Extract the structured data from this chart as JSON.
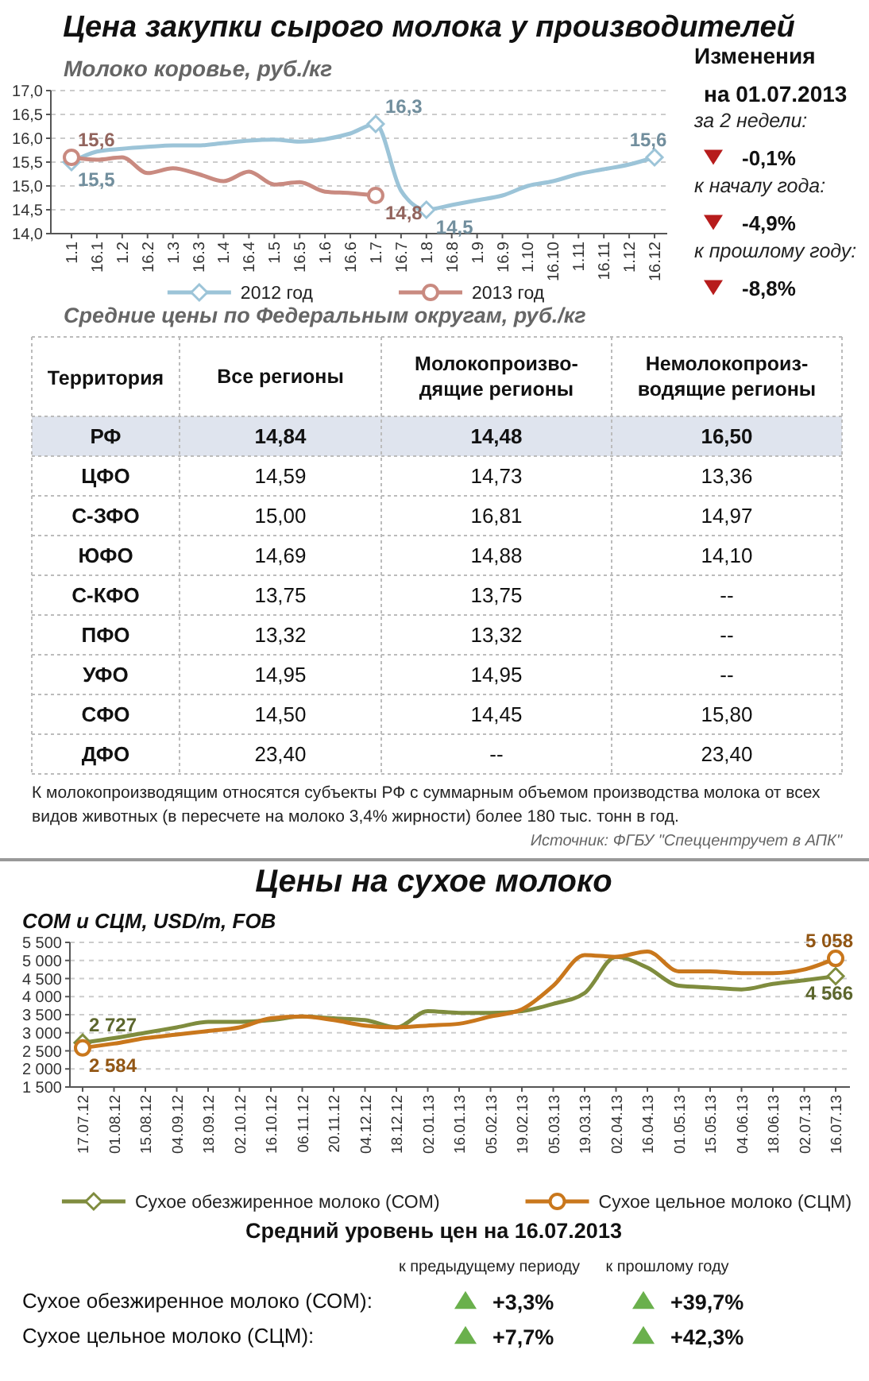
{
  "chart_data": [
    {
      "type": "line",
      "title": "Цена закупки сырого молока у производителей",
      "subtitle": "Молоко коровье, руб./кг",
      "categories": [
        "1.1",
        "16.1",
        "1.2",
        "16.2",
        "1.3",
        "16.3",
        "1.4",
        "16.4",
        "1.5",
        "16.5",
        "1.6",
        "16.6",
        "1.7",
        "16.7",
        "1.8",
        "16.8",
        "1.9",
        "16.9",
        "1.10",
        "16.10",
        "1.11",
        "16.11",
        "1.12",
        "16.12"
      ],
      "series": [
        {
          "name": "2012 год",
          "color": "#9cc4d8",
          "values": [
            15.5,
            15.72,
            15.78,
            15.82,
            15.85,
            15.85,
            15.9,
            15.95,
            15.97,
            15.93,
            15.98,
            16.1,
            16.3,
            14.9,
            14.5,
            14.6,
            14.7,
            14.8,
            15.0,
            15.1,
            15.25,
            15.35,
            15.45,
            15.6
          ],
          "value_labels": [
            "15,5",
            null,
            null,
            null,
            null,
            null,
            null,
            null,
            null,
            null,
            null,
            null,
            "16,3",
            null,
            "14,5",
            null,
            null,
            null,
            null,
            null,
            null,
            null,
            null,
            "15,6"
          ]
        },
        {
          "name": "2013 год",
          "color": "#c98a80",
          "values": [
            15.6,
            15.55,
            15.6,
            15.27,
            15.37,
            15.25,
            15.1,
            15.3,
            15.03,
            15.08,
            14.88,
            14.85,
            14.8,
            null,
            null,
            null,
            null,
            null,
            null,
            null,
            null,
            null,
            null,
            null
          ],
          "value_labels": [
            "15,6",
            null,
            null,
            null,
            null,
            null,
            null,
            null,
            null,
            null,
            null,
            null,
            "14,8",
            null,
            null,
            null,
            null,
            null,
            null,
            null,
            null,
            null,
            null,
            null
          ]
        }
      ],
      "ylim": [
        14,
        17
      ],
      "yticks": [
        {
          "value": 14,
          "label": "14,0"
        },
        {
          "value": 14.5,
          "label": "14,5"
        },
        {
          "value": 15,
          "label": "15,0"
        },
        {
          "value": 15.5,
          "label": "15,5"
        },
        {
          "value": 16,
          "label": "16,0"
        },
        {
          "value": 16.5,
          "label": "16,5"
        },
        {
          "value": 17,
          "label": "17,0"
        }
      ],
      "grid": "y",
      "legend": "bottom",
      "line_style": "solid"
    },
    {
      "type": "other",
      "title": "Изменения",
      "subtitle": "на 01.07.2013",
      "y_categories": [
        "за 2 недели:",
        "к началу года:",
        "к прошлому году:"
      ],
      "cell_labels": [
        [
          "-0,1%"
        ],
        [
          "-4,9%"
        ],
        [
          "-8,8%"
        ]
      ]
    },
    {
      "type": "other",
      "title": "Средние цены по Федеральным округам, руб./кг",
      "categories": [
        "Все регионы",
        "Молокопроизво-дящие регионы",
        "Немолокопроиз-водящие регионы"
      ],
      "y_categories": [
        "РФ",
        "ЦФО",
        "С-ЗФО",
        "ЮФО",
        "С-КФО",
        "ПФО",
        "УФО",
        "СФО",
        "ДФО"
      ],
      "cell_labels": [
        [
          "14,84",
          "14,48",
          "16,50"
        ],
        [
          "14,59",
          "14,73",
          "13,36"
        ],
        [
          "15,00",
          "16,81",
          "14,97"
        ],
        [
          "14,69",
          "14,88",
          "14,10"
        ],
        [
          "13,75",
          "13,75",
          "--"
        ],
        [
          "13,32",
          "13,32",
          "--"
        ],
        [
          "14,95",
          "14,95",
          "--"
        ],
        [
          "14,50",
          "14,45",
          "15,80"
        ],
        [
          "23,40",
          "--",
          "23,40"
        ]
      ],
      "annotations": [
        "Территория",
        "К молокопроизводящим относятся субъекты РФ с суммарным объемом производства молока от всех видов животных (в пересчете на молоко 3,4% жирности) более 180 тыс. тонн в год.",
        "Источник: ФГБУ \"Спеццентручет в АПК\""
      ]
    },
    {
      "type": "line",
      "title": "Цены на сухое молоко",
      "subtitle": "СОМ и СЦМ, USD/m, FOB",
      "categories": [
        "17.07.12",
        "01.08.12",
        "15.08.12",
        "04.09.12",
        "18.09.12",
        "02.10.12",
        "16.10.12",
        "06.11.12",
        "20.11.12",
        "04.12.12",
        "18.12.12",
        "02.01.13",
        "16.01.13",
        "05.02.13",
        "19.02.13",
        "05.03.13",
        "19.03.13",
        "02.04.13",
        "16.04.13",
        "01.05.13",
        "15.05.13",
        "04.06.13",
        "18.06.13",
        "02.07.13",
        "16.07.13"
      ],
      "series": [
        {
          "name": "Сухое обезжиренное молоко (СОМ)",
          "color": "#7f8c3e",
          "values": [
            2727,
            2850,
            3000,
            3150,
            3300,
            3300,
            3350,
            3450,
            3400,
            3350,
            3150,
            3600,
            3550,
            3550,
            3600,
            3800,
            4100,
            5100,
            4800,
            4300,
            4250,
            4200,
            4350,
            4450,
            4566
          ],
          "value_labels": [
            "2 727",
            null,
            null,
            null,
            null,
            null,
            null,
            null,
            null,
            null,
            null,
            null,
            null,
            null,
            null,
            null,
            null,
            null,
            null,
            null,
            null,
            null,
            null,
            null,
            "4 566"
          ]
        },
        {
          "name": "Сухое цельное молоко (СЦМ)",
          "color": "#c9771c",
          "values": [
            2584,
            2700,
            2850,
            2950,
            3050,
            3150,
            3400,
            3450,
            3350,
            3200,
            3150,
            3200,
            3250,
            3450,
            3650,
            4300,
            5150,
            5100,
            5250,
            4700,
            4700,
            4650,
            4650,
            4750,
            5058
          ],
          "value_labels": [
            "2 584",
            null,
            null,
            null,
            null,
            null,
            null,
            null,
            null,
            null,
            null,
            null,
            null,
            null,
            null,
            null,
            null,
            null,
            null,
            null,
            null,
            null,
            null,
            null,
            "5 058"
          ]
        }
      ],
      "ylim": [
        1500,
        5500
      ],
      "yticks": [
        {
          "value": 1500,
          "label": "1 500"
        },
        {
          "value": 2000,
          "label": "2 000"
        },
        {
          "value": 2500,
          "label": "2 500"
        },
        {
          "value": 3000,
          "label": "3 000"
        },
        {
          "value": 3500,
          "label": "3 500"
        },
        {
          "value": 4000,
          "label": "4 000"
        },
        {
          "value": 4500,
          "label": "4 500"
        },
        {
          "value": 5000,
          "label": "5 000"
        },
        {
          "value": 5500,
          "label": "5 500"
        }
      ],
      "grid": "y",
      "legend": "bottom",
      "line_style": "solid"
    },
    {
      "type": "other",
      "title": "Средний уровень цен на 16.07.2013",
      "categories": [
        "к предыдущему периоду",
        "к прошлому году"
      ],
      "y_categories": [
        "Сухое обезжиренное молоко (СОМ):",
        "Сухое цельное молоко (СЦМ):"
      ],
      "cell_labels": [
        [
          "+3,3%",
          "+39,7%"
        ],
        [
          "+7,7%",
          "+42,3%"
        ]
      ]
    }
  ]
}
